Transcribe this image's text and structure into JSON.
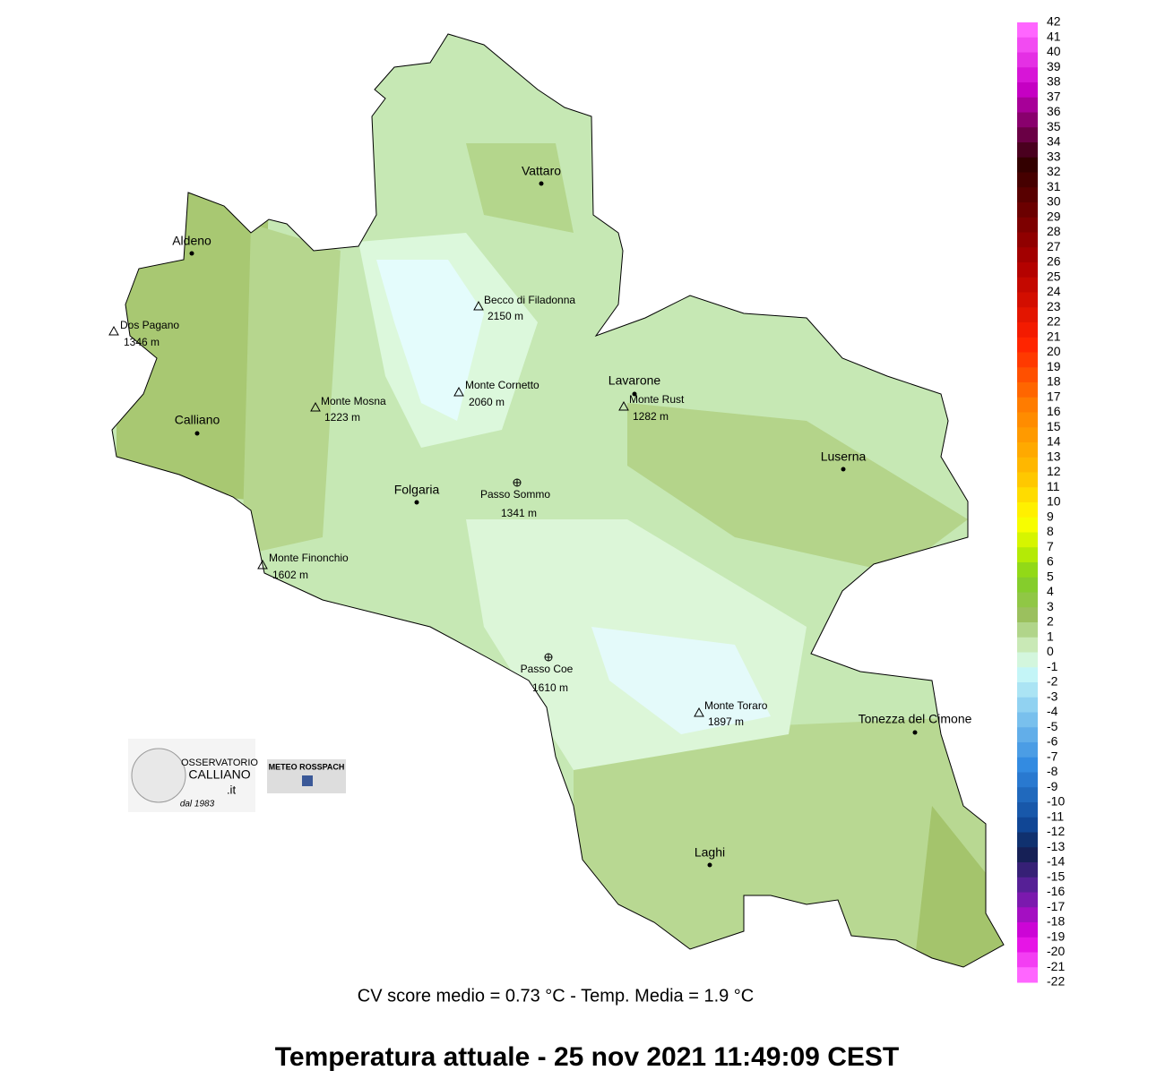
{
  "title": "Temperatura attuale  -  25 nov 2021 11:49:09  CEST",
  "stats": "CV score medio = 0.73 °C  -  Temp. Media = 1.9 °C",
  "towns": [
    "Vattaro",
    "Aldeno",
    "Calliano",
    "Folgaria",
    "Lavarone",
    "Luserna",
    "Tonezza del Cimone",
    "Laghi"
  ],
  "peaks": [
    {
      "name": "Becco di Filadonna",
      "elevation": "2150 m"
    },
    {
      "name": "Dos Pagano",
      "elevation": "1346 m"
    },
    {
      "name": "Monte Cornetto",
      "elevation": "2060 m"
    },
    {
      "name": "Monte Mosna",
      "elevation": "1223 m"
    },
    {
      "name": "Monte Rust",
      "elevation": "1282 m"
    },
    {
      "name": "Monte Finonchio",
      "elevation": "1602 m"
    },
    {
      "name": "Monte Toraro",
      "elevation": "1897 m"
    }
  ],
  "passes": [
    {
      "name": "Passo Sommo",
      "elevation": "1341 m"
    },
    {
      "name": "Passo Coe",
      "elevation": "1610 m"
    }
  ],
  "logos": {
    "observatory": [
      "OSSERVATORIO",
      "CALLIANO",
      ".it",
      "dal 1983"
    ],
    "facebook": "METEO ROSSPACH"
  },
  "colorbar": {
    "ticks": [
      42,
      41,
      40,
      39,
      38,
      37,
      36,
      35,
      34,
      33,
      32,
      31,
      30,
      29,
      28,
      27,
      26,
      25,
      24,
      23,
      22,
      21,
      20,
      19,
      18,
      17,
      16,
      15,
      14,
      13,
      12,
      11,
      10,
      9,
      8,
      7,
      6,
      5,
      4,
      3,
      2,
      1,
      0,
      -1,
      -2,
      -3,
      -4,
      -5,
      -6,
      -7,
      -8,
      -9,
      -10,
      -11,
      -12,
      -13,
      -14,
      -15,
      -16,
      -17,
      -18,
      -19,
      -20,
      -21,
      -22
    ]
  }
}
